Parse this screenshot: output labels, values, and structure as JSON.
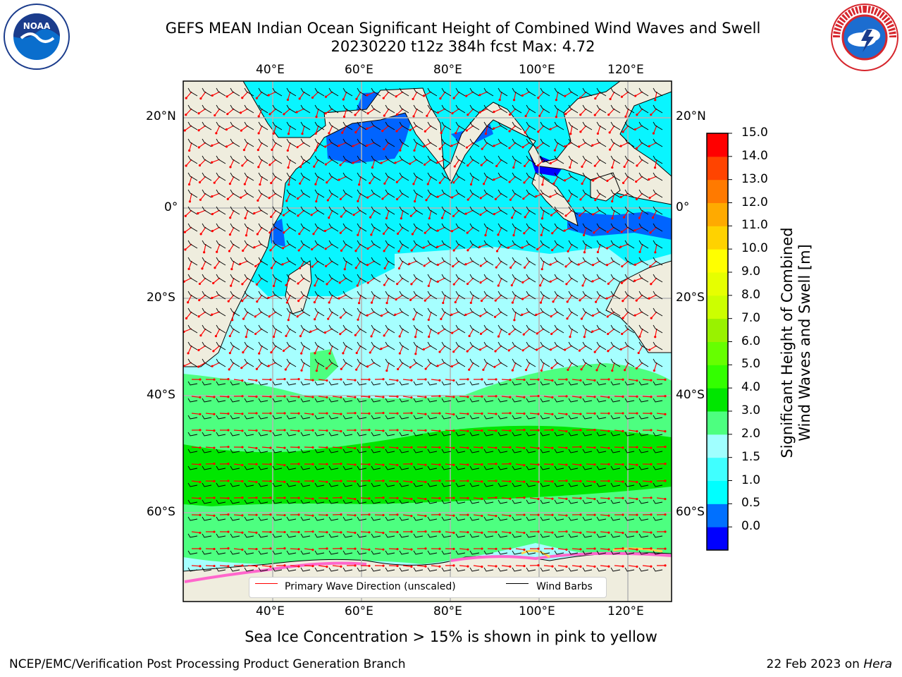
{
  "title_line1": "GEFS MEAN Indian Ocean Significant Height of Combined Wind Waves and Swell",
  "title_line2": "20230220 t12z 384h fcst   Max: 4.72",
  "logos": {
    "left": "noaa-logo",
    "left_text": "NOAA",
    "right": "nws-logo",
    "right_text": "NATIONAL WEATHER SERVICE"
  },
  "axes": {
    "lon_labels": [
      "40°E",
      "60°E",
      "80°E",
      "100°E",
      "120°E"
    ],
    "lat_labels": [
      "20°N",
      "0°",
      "20°S",
      "40°S",
      "60°S"
    ]
  },
  "colorbar": {
    "title": "Significant Height of Combined Wind Waves and Swell [m]",
    "title_line1": "Significant Height of Combined",
    "title_line2": "Wind Waves and Swell [m]",
    "ticks": [
      "15.0",
      "14.0",
      "13.0",
      "12.0",
      "11.0",
      "10.0",
      "9.0",
      "8.0",
      "7.0",
      "6.0",
      "5.0",
      "4.0",
      "3.0",
      "2.0",
      "1.5",
      "1.0",
      "0.5",
      "0.0"
    ],
    "colors": [
      "#0000ff",
      "#0070ff",
      "#00ffff",
      "#40ffff",
      "#a0ffff",
      "#4dff80",
      "#00e600",
      "#33ff00",
      "#66ff00",
      "#99f200",
      "#ccff00",
      "#e6ff00",
      "#ffff00",
      "#ffd200",
      "#ffaa00",
      "#ff7a00",
      "#ff4400",
      "#ff0000"
    ]
  },
  "legend": {
    "wave_label": "Primary Wave Direction (unscaled)",
    "wave_color": "#ff0000",
    "wind_label": "Wind Barbs",
    "wind_color": "#000000"
  },
  "footnote": "Sea Ice Concentration > 15% is shown in pink to yellow",
  "credit_left": "NCEP/EMC/Verification Post Processing Product Generation Branch",
  "credit_right_date": "22 Feb 2023 on",
  "credit_right_machine": "Hera",
  "map_colors": {
    "land": "#efedde",
    "ocean_light": "#a6ffff",
    "ocean_cyan": "#00f4ff",
    "ocean_blue": "#0064ff",
    "ocean_green": "#4dff80",
    "band_green": "#00e600",
    "ice_pink": "#ff66cc",
    "ice_yellow": "#ffd24d",
    "grid": "#b4b4b4"
  }
}
